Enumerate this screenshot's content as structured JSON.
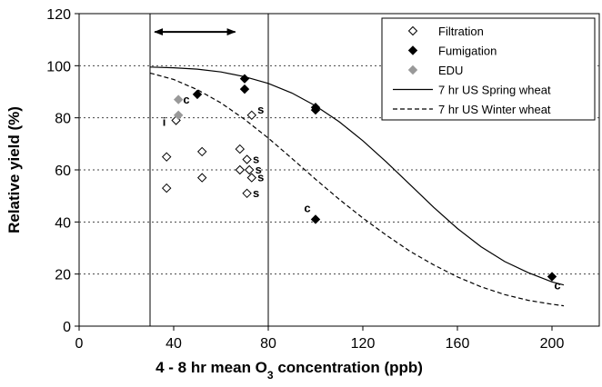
{
  "chart_data": {
    "type": "scatter",
    "title": "",
    "xlabel": {
      "prefix": "4 - 8 hr mean O",
      "sub": "3",
      "suffix": " concentration (ppb)"
    },
    "ylabel": "Relative yield (%)",
    "xlim": [
      0,
      220
    ],
    "ylim": [
      0,
      120
    ],
    "x_ticks": [
      0,
      40,
      80,
      120,
      160,
      200
    ],
    "y_ticks": [
      0,
      20,
      40,
      60,
      80,
      100,
      120
    ],
    "grid": "horizontal dotted",
    "legend_position": "top-right",
    "vertical_lines": [
      30,
      80
    ],
    "range_arrow": {
      "x_start": 32,
      "x_end": 66,
      "y": 113
    },
    "series": [
      {
        "name": "Filtration",
        "marker": "open-diamond",
        "color": "#000000",
        "points": [
          [
            37,
            53
          ],
          [
            37,
            65
          ],
          [
            41,
            79
          ],
          [
            52,
            57
          ],
          [
            52,
            67
          ],
          [
            68,
            68
          ],
          [
            68,
            60
          ],
          [
            71,
            64
          ],
          [
            72,
            60
          ],
          [
            73,
            57
          ],
          [
            71,
            51
          ],
          [
            73,
            81
          ]
        ]
      },
      {
        "name": "Fumigation",
        "marker": "filled-diamond",
        "color": "#000000",
        "points": [
          [
            50,
            89
          ],
          [
            70,
            95
          ],
          [
            70,
            91
          ],
          [
            100,
            84
          ],
          [
            100,
            83
          ],
          [
            100,
            41
          ],
          [
            200,
            19
          ]
        ]
      },
      {
        "name": "EDU",
        "marker": "filled-diamond",
        "color": "#999999",
        "points": [
          [
            42,
            87
          ],
          [
            42,
            81
          ]
        ]
      },
      {
        "name": "7 hr US Spring wheat",
        "type": "line",
        "style": "solid",
        "points": [
          [
            30,
            99.5
          ],
          [
            40,
            99.2
          ],
          [
            50,
            98.7
          ],
          [
            60,
            97.6
          ],
          [
            70,
            95.8
          ],
          [
            80,
            93.2
          ],
          [
            90,
            89.5
          ],
          [
            100,
            84.6
          ],
          [
            110,
            78.5
          ],
          [
            120,
            71.2
          ],
          [
            130,
            63.0
          ],
          [
            140,
            54.3
          ],
          [
            150,
            45.6
          ],
          [
            160,
            37.5
          ],
          [
            170,
            30.5
          ],
          [
            180,
            24.8
          ],
          [
            190,
            20.5
          ],
          [
            200,
            17.0
          ],
          [
            205,
            15.8
          ]
        ]
      },
      {
        "name": "7 hr US Winter wheat",
        "type": "line",
        "style": "dashed",
        "points": [
          [
            30,
            97.2
          ],
          [
            40,
            94.7
          ],
          [
            50,
            90.8
          ],
          [
            60,
            85.7
          ],
          [
            70,
            79.4
          ],
          [
            80,
            72.2
          ],
          [
            90,
            64.4
          ],
          [
            100,
            56.4
          ],
          [
            110,
            48.7
          ],
          [
            120,
            41.5
          ],
          [
            130,
            34.9
          ],
          [
            140,
            28.7
          ],
          [
            150,
            23.5
          ],
          [
            160,
            18.9
          ],
          [
            170,
            15.1
          ],
          [
            180,
            12.1
          ],
          [
            190,
            9.9
          ],
          [
            200,
            8.4
          ],
          [
            205,
            7.8
          ]
        ]
      }
    ],
    "annotations": [
      {
        "text": "c",
        "x": 50,
        "y": 89,
        "dx": -12,
        "dy": 10
      },
      {
        "text": "s",
        "x": 73,
        "y": 81,
        "dx": 10,
        "dy": -2
      },
      {
        "text": "i",
        "x": 41,
        "y": 79,
        "dx": -13,
        "dy": 6
      },
      {
        "text": "s",
        "x": 71,
        "y": 64,
        "dx": 10,
        "dy": 4
      },
      {
        "text": "s",
        "x": 72,
        "y": 60,
        "dx": 10,
        "dy": 4
      },
      {
        "text": "s",
        "x": 73,
        "y": 57,
        "dx": 10,
        "dy": 4
      },
      {
        "text": "s",
        "x": 71,
        "y": 51,
        "dx": 10,
        "dy": 4
      },
      {
        "text": "c",
        "x": 100,
        "y": 41,
        "dx": -9,
        "dy": -8
      },
      {
        "text": "c",
        "x": 200,
        "y": 19,
        "dx": 6,
        "dy": 14
      }
    ]
  }
}
